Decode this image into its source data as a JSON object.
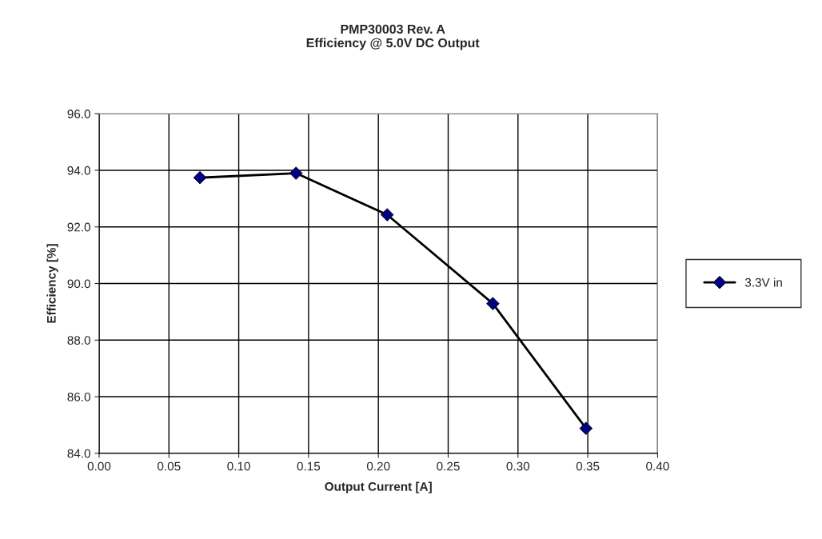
{
  "chart_data": {
    "type": "line",
    "title": "PMP30003 Rev. A\nEfficiency @ 5.0V DC Output",
    "xlabel": "Output Current [A]",
    "ylabel": "Efficiency [%]",
    "series": [
      {
        "name": "3.3V in",
        "color": "#000080",
        "x": [
          0.0722,
          0.141,
          0.2063,
          0.282,
          0.3487
        ],
        "values": [
          93.74,
          93.9,
          92.43,
          89.29,
          84.88
        ]
      }
    ],
    "xlim": [
      0,
      0.4
    ],
    "xticks": [
      {
        "value": 0,
        "label": "0.00"
      },
      {
        "value": 0.05,
        "label": "0.05"
      },
      {
        "value": 0.1,
        "label": "0.10"
      },
      {
        "value": 0.15,
        "label": "0.15"
      },
      {
        "value": 0.2,
        "label": "0.20"
      },
      {
        "value": 0.25,
        "label": "0.25"
      },
      {
        "value": 0.3,
        "label": "0.30"
      },
      {
        "value": 0.35,
        "label": "0.35"
      },
      {
        "value": 0.4,
        "label": "0.40"
      }
    ],
    "ylim": [
      84,
      96
    ],
    "yticks": [
      {
        "value": 84,
        "label": "84.0"
      },
      {
        "value": 86,
        "label": "86.0"
      },
      {
        "value": 88,
        "label": "88.0"
      },
      {
        "value": 90,
        "label": "90.0"
      },
      {
        "value": 92,
        "label": "92.0"
      },
      {
        "value": 94,
        "label": "94.0"
      },
      {
        "value": 96,
        "label": "96.0"
      }
    ],
    "grid": true,
    "legend": "right",
    "marker": "diamond",
    "line_style": "solid"
  }
}
